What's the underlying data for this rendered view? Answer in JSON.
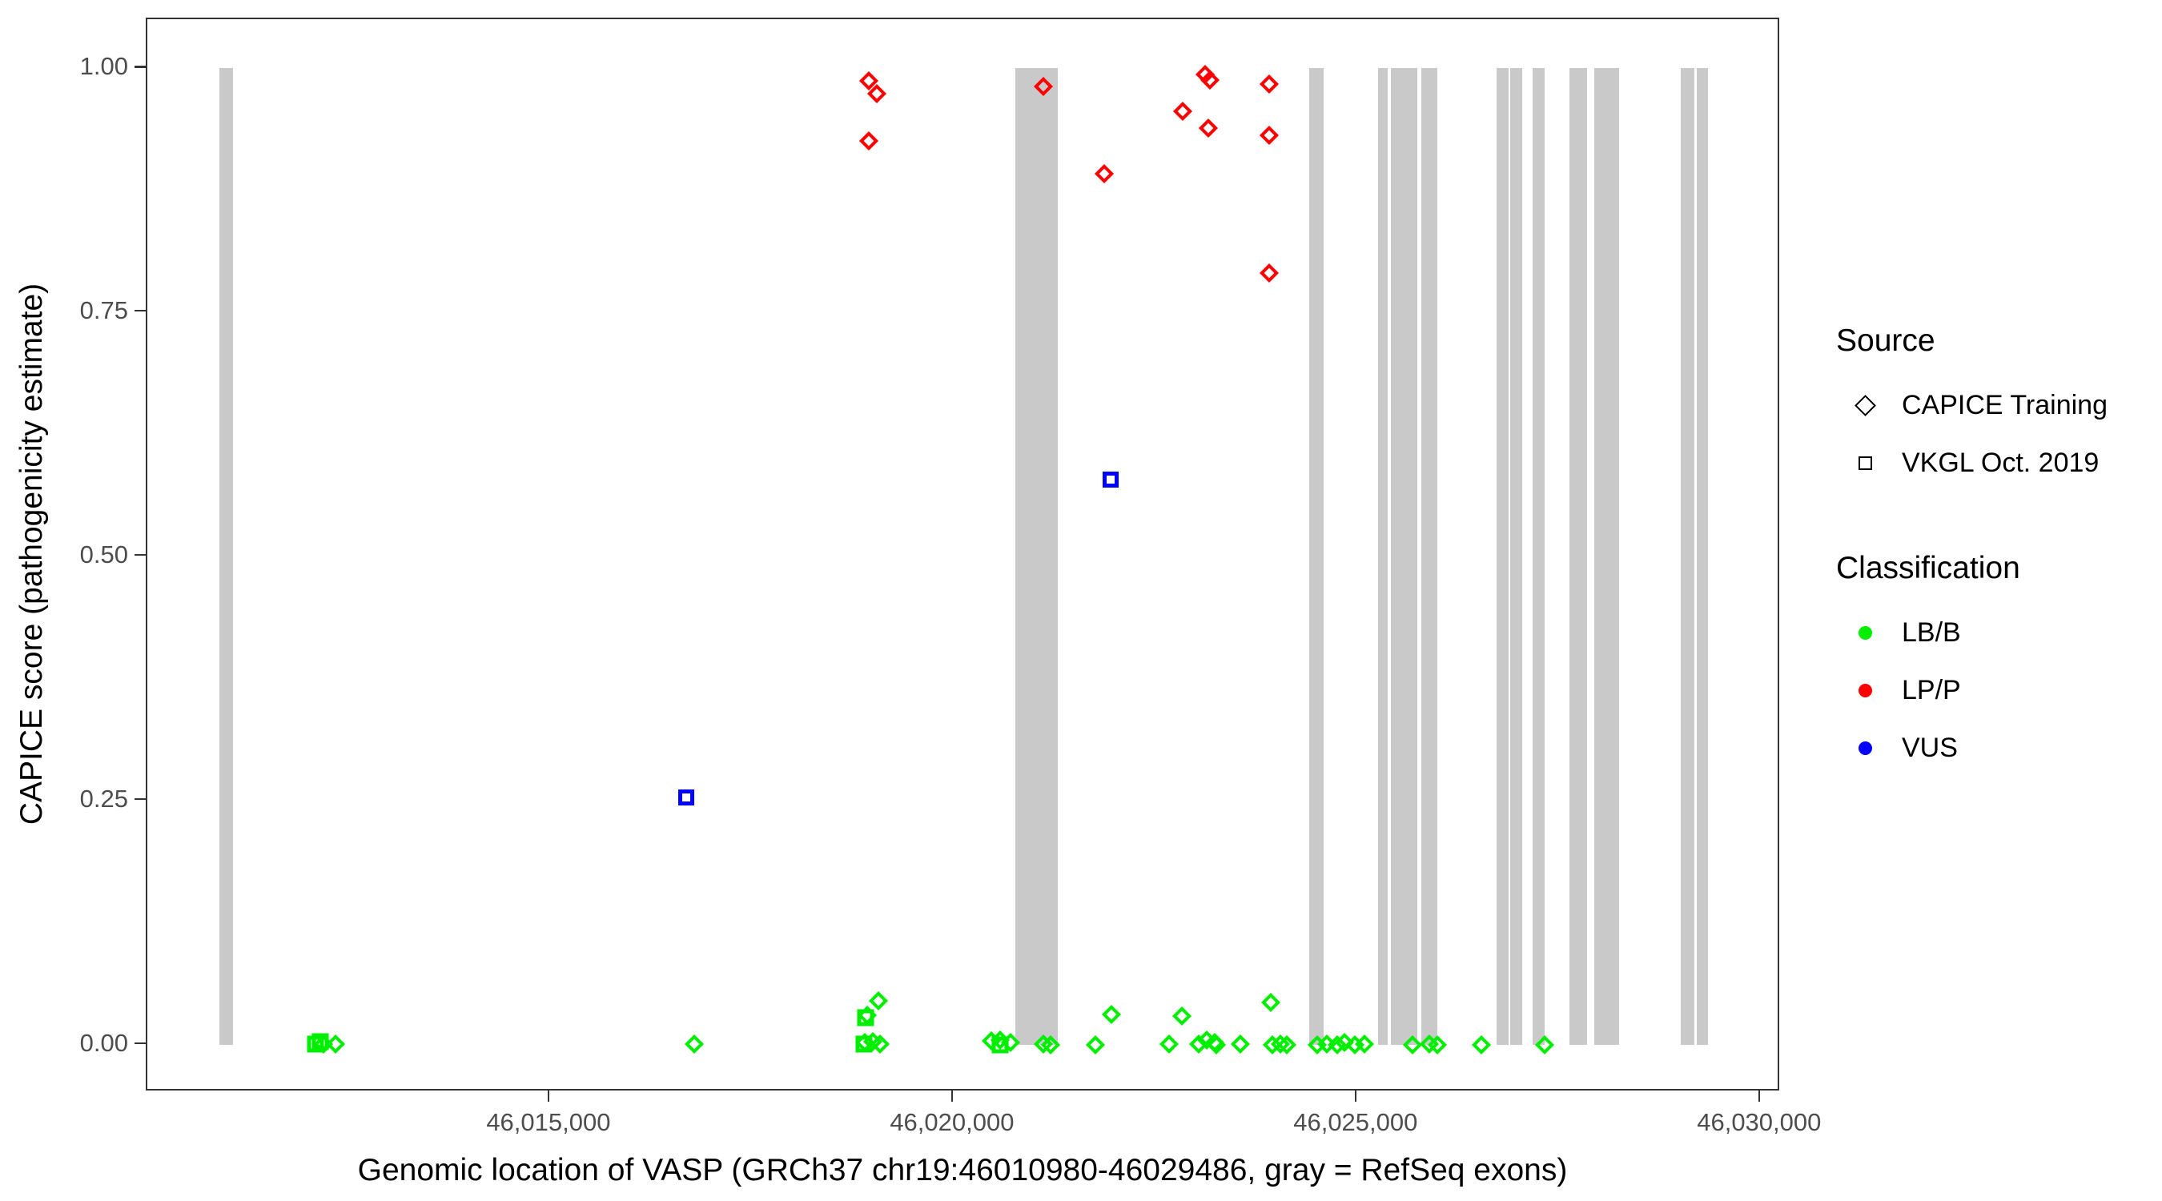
{
  "chart_data": {
    "type": "scatter",
    "title": "",
    "xlabel": "Genomic location of VASP (GRCh37 chr19:46010980-46029486, gray = RefSeq exons)",
    "ylabel": "CAPICE score (pathogenicity estimate)",
    "xlim": [
      46010010,
      46030250
    ],
    "ylim": [
      -0.0486,
      1.0502
    ],
    "grid": false,
    "x_ticks": [
      {
        "pos": 46015000,
        "label": "46,015,000"
      },
      {
        "pos": 46020000,
        "label": "46,020,000"
      },
      {
        "pos": 46025000,
        "label": "46,025,000"
      },
      {
        "pos": 46030000,
        "label": "46,030,000"
      }
    ],
    "y_ticks": [
      {
        "v": 0.0,
        "label": "0.00"
      },
      {
        "v": 0.25,
        "label": "0.25"
      },
      {
        "v": 0.5,
        "label": "0.50"
      },
      {
        "v": 0.75,
        "label": "0.75"
      },
      {
        "v": 1.0,
        "label": "1.00"
      }
    ],
    "colors": {
      "exon_gray": "#C9C9C9",
      "LB_B": "#00EE00",
      "LP_P": "#FF0000",
      "VUS": "#0000FF"
    },
    "exons": [
      {
        "start": 46010900,
        "end": 46011070
      },
      {
        "start": 46020764,
        "end": 46021291
      },
      {
        "start": 46024406,
        "end": 46024583
      },
      {
        "start": 46025258,
        "end": 46025377
      },
      {
        "start": 46025416,
        "end": 46025744
      },
      {
        "start": 46025793,
        "end": 46025991
      },
      {
        "start": 46026724,
        "end": 46026873
      },
      {
        "start": 46026898,
        "end": 46027047
      },
      {
        "start": 46027170,
        "end": 46027319
      },
      {
        "start": 46027633,
        "end": 46027848
      },
      {
        "start": 46027940,
        "end": 46028245
      },
      {
        "start": 46029012,
        "end": 46029181
      },
      {
        "start": 46029211,
        "end": 46029350
      }
    ],
    "series": [
      {
        "name": "LP/P — CAPICE Training",
        "classification": "LP/P",
        "source": "CAPICE Training",
        "marker": "diamond",
        "color": "#FF0000",
        "size": 17,
        "stroke": 4.5,
        "points": [
          {
            "x": 46018946,
            "y": 0.987
          },
          {
            "x": 46019045,
            "y": 0.974
          },
          {
            "x": 46018946,
            "y": 0.926
          },
          {
            "x": 46021109,
            "y": 0.981
          },
          {
            "x": 46021863,
            "y": 0.892
          },
          {
            "x": 46023113,
            "y": 0.994
          },
          {
            "x": 46023178,
            "y": 0.988
          },
          {
            "x": 46022838,
            "y": 0.956
          },
          {
            "x": 46023158,
            "y": 0.939
          },
          {
            "x": 46023907,
            "y": 0.984
          },
          {
            "x": 46023907,
            "y": 0.931
          },
          {
            "x": 46023907,
            "y": 0.79
          }
        ]
      },
      {
        "name": "VUS — VKGL Oct. 2019",
        "classification": "VUS",
        "source": "VKGL Oct. 2019",
        "marker": "square",
        "color": "#0000FF",
        "size": 20,
        "stroke": 5,
        "points": [
          {
            "x": 46016684,
            "y": 0.253
          },
          {
            "x": 46021942,
            "y": 0.579
          }
        ]
      },
      {
        "name": "LB/B — VKGL Oct. 2019",
        "classification": "LB/B",
        "source": "VKGL Oct. 2019",
        "marker": "square",
        "color": "#00EE00",
        "size": 21,
        "stroke": 5,
        "points": [
          {
            "x": 46012093,
            "y": 0.001
          },
          {
            "x": 46012153,
            "y": 0.003
          },
          {
            "x": 46018890,
            "y": 0.001
          },
          {
            "x": 46018912,
            "y": 0.028
          },
          {
            "x": 46020580,
            "y": 0.0
          }
        ]
      },
      {
        "name": "LB/B — CAPICE Training",
        "classification": "LB/B",
        "source": "CAPICE Training",
        "marker": "diamond",
        "color": "#00EE00",
        "size": 17,
        "stroke": 4.5,
        "points": [
          {
            "x": 46012192,
            "y": 0.001
          },
          {
            "x": 46012341,
            "y": 0.001
          },
          {
            "x": 46016786,
            "y": 0.001
          },
          {
            "x": 46018900,
            "y": 0.002
          },
          {
            "x": 46018930,
            "y": 0.03
          },
          {
            "x": 46019000,
            "y": 0.003
          },
          {
            "x": 46019068,
            "y": 0.045
          },
          {
            "x": 46019090,
            "y": 0.001
          },
          {
            "x": 46020465,
            "y": 0.004
          },
          {
            "x": 46020575,
            "y": 0.005
          },
          {
            "x": 46020704,
            "y": 0.002
          },
          {
            "x": 46021116,
            "y": 0.001
          },
          {
            "x": 46021198,
            "y": 0.0
          },
          {
            "x": 46021757,
            "y": 0.0
          },
          {
            "x": 46021952,
            "y": 0.031
          },
          {
            "x": 46022672,
            "y": 0.001
          },
          {
            "x": 46022830,
            "y": 0.029
          },
          {
            "x": 46023036,
            "y": 0.001
          },
          {
            "x": 46023135,
            "y": 0.005
          },
          {
            "x": 46023234,
            "y": 0.002
          },
          {
            "x": 46023250,
            "y": 0.0
          },
          {
            "x": 46023550,
            "y": 0.001
          },
          {
            "x": 46023930,
            "y": 0.043
          },
          {
            "x": 46023947,
            "y": 0.0
          },
          {
            "x": 46024045,
            "y": 0.001
          },
          {
            "x": 46024130,
            "y": 0.0
          },
          {
            "x": 46024502,
            "y": 0.0
          },
          {
            "x": 46024621,
            "y": 0.001
          },
          {
            "x": 46024750,
            "y": 0.0
          },
          {
            "x": 46024845,
            "y": 0.002
          },
          {
            "x": 46024968,
            "y": 0.0
          },
          {
            "x": 46025087,
            "y": 0.001
          },
          {
            "x": 46025685,
            "y": 0.0
          },
          {
            "x": 46025894,
            "y": 0.001
          },
          {
            "x": 46025993,
            "y": 0.0
          },
          {
            "x": 46026543,
            "y": 0.0
          },
          {
            "x": 46027325,
            "y": 0.0
          }
        ]
      }
    ],
    "legend": {
      "position": "right",
      "source": {
        "title": "Source",
        "items": [
          {
            "label": "CAPICE Training",
            "marker": "diamond"
          },
          {
            "label": "VKGL Oct. 2019",
            "marker": "square"
          }
        ]
      },
      "classification": {
        "title": "Classification",
        "items": [
          {
            "label": "LB/B",
            "color": "#00EE00"
          },
          {
            "label": "LP/P",
            "color": "#FF0000"
          },
          {
            "label": "VUS",
            "color": "#0000FF"
          }
        ]
      }
    }
  }
}
